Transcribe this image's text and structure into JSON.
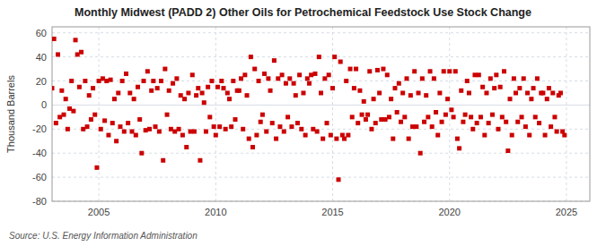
{
  "chart_data": {
    "type": "scatter",
    "title": "Monthly Midwest (PADD 2) Other Oils for Petrochemical Feedstock Use Stock Change",
    "y_label": "Thousand Barrels",
    "source": "Source: U.S. Energy Information Administration",
    "xlim": [
      2003.0,
      2026.0
    ],
    "ylim": [
      -80,
      65
    ],
    "xticks": [
      2005,
      2010,
      2015,
      2020,
      2025
    ],
    "yticks": [
      -80,
      -60,
      -40,
      -20,
      0,
      20,
      40,
      60
    ],
    "grid": true,
    "color": "#cc0000",
    "marker": "square",
    "x": [
      2003.0,
      2003.083,
      2003.167,
      2003.25,
      2003.333,
      2003.417,
      2003.5,
      2003.583,
      2003.667,
      2003.75,
      2003.833,
      2003.917,
      2004.0,
      2004.083,
      2004.167,
      2004.25,
      2004.333,
      2004.417,
      2004.5,
      2004.583,
      2004.667,
      2004.75,
      2004.833,
      2004.917,
      2005.0,
      2005.083,
      2005.167,
      2005.25,
      2005.333,
      2005.417,
      2005.5,
      2005.583,
      2005.667,
      2005.75,
      2005.833,
      2005.917,
      2006.0,
      2006.083,
      2006.167,
      2006.25,
      2006.333,
      2006.417,
      2006.5,
      2006.583,
      2006.667,
      2006.75,
      2006.833,
      2006.917,
      2007.0,
      2007.083,
      2007.167,
      2007.25,
      2007.333,
      2007.417,
      2007.5,
      2007.583,
      2007.667,
      2007.75,
      2007.833,
      2007.917,
      2008.0,
      2008.083,
      2008.167,
      2008.25,
      2008.333,
      2008.417,
      2008.5,
      2008.583,
      2008.667,
      2008.75,
      2008.833,
      2008.917,
      2009.0,
      2009.083,
      2009.167,
      2009.25,
      2009.333,
      2009.417,
      2009.5,
      2009.583,
      2009.667,
      2009.75,
      2009.833,
      2009.917,
      2010.0,
      2010.083,
      2010.167,
      2010.25,
      2010.333,
      2010.417,
      2010.5,
      2010.583,
      2010.667,
      2010.75,
      2010.833,
      2010.917,
      2011.0,
      2011.083,
      2011.167,
      2011.25,
      2011.333,
      2011.417,
      2011.5,
      2011.583,
      2011.667,
      2011.75,
      2011.833,
      2011.917,
      2012.0,
      2012.083,
      2012.167,
      2012.25,
      2012.333,
      2012.417,
      2012.5,
      2012.583,
      2012.667,
      2012.75,
      2012.833,
      2012.917,
      2013.0,
      2013.083,
      2013.167,
      2013.25,
      2013.333,
      2013.417,
      2013.5,
      2013.583,
      2013.667,
      2013.75,
      2013.833,
      2013.917,
      2014.0,
      2014.083,
      2014.167,
      2014.25,
      2014.333,
      2014.417,
      2014.5,
      2014.583,
      2014.667,
      2014.75,
      2014.833,
      2014.917,
      2015.0,
      2015.083,
      2015.167,
      2015.25,
      2015.333,
      2015.417,
      2015.5,
      2015.583,
      2015.667,
      2015.75,
      2015.833,
      2015.917,
      2016.0,
      2016.083,
      2016.167,
      2016.25,
      2016.333,
      2016.417,
      2016.5,
      2016.583,
      2016.667,
      2016.75,
      2016.833,
      2016.917,
      2017.0,
      2017.083,
      2017.167,
      2017.25,
      2017.333,
      2017.417,
      2017.5,
      2017.583,
      2017.667,
      2017.75,
      2017.833,
      2017.917,
      2018.0,
      2018.083,
      2018.167,
      2018.25,
      2018.333,
      2018.417,
      2018.5,
      2018.583,
      2018.667,
      2018.75,
      2018.833,
      2018.917,
      2019.0,
      2019.083,
      2019.167,
      2019.25,
      2019.333,
      2019.417,
      2019.5,
      2019.583,
      2019.667,
      2019.75,
      2019.833,
      2019.917,
      2020.0,
      2020.083,
      2020.167,
      2020.25,
      2020.333,
      2020.417,
      2020.5,
      2020.583,
      2020.667,
      2020.75,
      2020.833,
      2020.917,
      2021.0,
      2021.083,
      2021.167,
      2021.25,
      2021.333,
      2021.417,
      2021.5,
      2021.583,
      2021.667,
      2021.75,
      2021.833,
      2021.917,
      2022.0,
      2022.083,
      2022.167,
      2022.25,
      2022.333,
      2022.417,
      2022.5,
      2022.583,
      2022.667,
      2022.75,
      2022.833,
      2022.917,
      2023.0,
      2023.083,
      2023.167,
      2023.25,
      2023.333,
      2023.417,
      2023.5,
      2023.583,
      2023.667,
      2023.75,
      2023.833,
      2023.917,
      2024.0,
      2024.083,
      2024.167,
      2024.25,
      2024.333,
      2024.417,
      2024.5,
      2024.583,
      2024.667,
      2024.75,
      2024.833,
      2024.917
    ],
    "values": [
      14,
      55,
      -15,
      42,
      -10,
      12,
      -8,
      5,
      -20,
      -3,
      20,
      -5,
      54,
      42,
      15,
      44,
      -20,
      20,
      -18,
      8,
      -12,
      14,
      -8,
      -52,
      20,
      -20,
      22,
      -13,
      20,
      -25,
      21,
      -15,
      5,
      -30,
      10,
      -18,
      20,
      -22,
      26,
      -15,
      10,
      -22,
      5,
      -25,
      15,
      -12,
      -40,
      20,
      -21,
      28,
      -20,
      12,
      20,
      -18,
      14,
      -22,
      20,
      -46,
      30,
      -8,
      12,
      -20,
      18,
      -22,
      22,
      -20,
      8,
      -25,
      5,
      -35,
      10,
      -22,
      25,
      -22,
      8,
      14,
      -46,
      10,
      2,
      -22,
      15,
      -10,
      20,
      -18,
      -25,
      15,
      -18,
      20,
      14,
      -20,
      10,
      5,
      -18,
      20,
      -12,
      12,
      12,
      22,
      -20,
      25,
      8,
      -28,
      40,
      -35,
      30,
      -25,
      20,
      -14,
      -8,
      26,
      -22,
      22,
      12,
      -15,
      37,
      -28,
      22,
      -18,
      25,
      -22,
      18,
      -10,
      22,
      -18,
      18,
      8,
      -15,
      25,
      -20,
      10,
      -25,
      22,
      18,
      25,
      -20,
      26,
      -22,
      40,
      10,
      -28,
      22,
      -15,
      25,
      -25,
      14,
      40,
      -28,
      -62,
      36,
      -25,
      -28,
      20,
      -25,
      30,
      -10,
      14,
      30,
      -15,
      12,
      -8,
      3,
      -12,
      -8,
      28,
      -20,
      5,
      -15,
      29,
      10,
      -12,
      30,
      -12,
      25,
      -10,
      5,
      -28,
      14,
      -6,
      18,
      -14,
      10,
      -10,
      22,
      -28,
      8,
      -18,
      28,
      -18,
      10,
      -40,
      22,
      -14,
      8,
      -10,
      28,
      -18,
      22,
      -6,
      -25,
      10,
      -14,
      28,
      -8,
      5,
      28,
      -4,
      -10,
      28,
      -28,
      -36,
      12,
      -14,
      -8,
      20,
      10,
      -10,
      -20,
      25,
      -15,
      25,
      -10,
      15,
      -25,
      10,
      -15,
      22,
      -8,
      14,
      25,
      -20,
      15,
      -10,
      28,
      -14,
      -38,
      5,
      -25,
      22,
      10,
      -14,
      14,
      -10,
      22,
      -18,
      10,
      -25,
      5,
      14,
      -10,
      22,
      -15,
      10,
      10,
      -25,
      5,
      14,
      -18,
      10,
      -10,
      -22,
      8,
      10,
      -22,
      -25
    ]
  }
}
